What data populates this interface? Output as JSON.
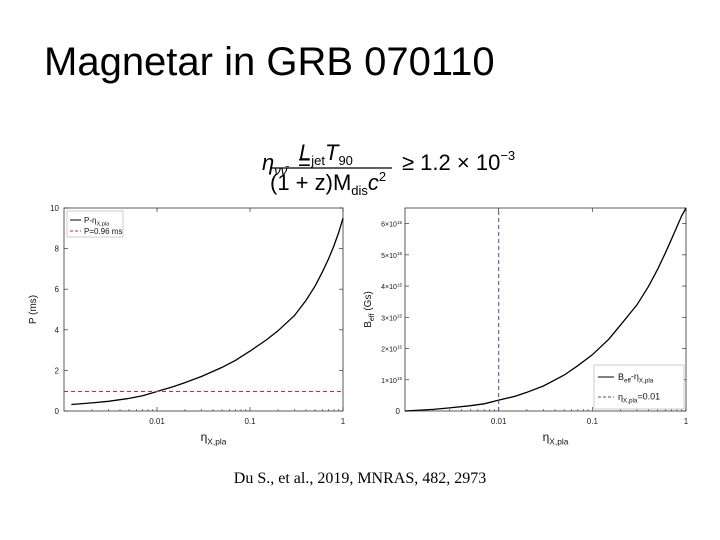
{
  "slide": {
    "title": "Magnetar in GRB 070110",
    "citation": "Du S., et al., 2019, MNRAS, 482, 2973"
  },
  "equation": {
    "lhs": "η",
    "lhs_sub": "νν̄",
    "num_main": "L",
    "num_sub": "jet",
    "num_main2": "T",
    "num_sub2": "90",
    "den_pre": "(1 + z)M",
    "den_sub": "dis",
    "den_post": "c",
    "den_sup": "2",
    "rhs": "≥ 1.2 × 10",
    "rhs_sup": "−3"
  },
  "chart_data": [
    {
      "type": "line",
      "x_scale": "log",
      "xlim": [
        0.001,
        1
      ],
      "ylim": [
        0,
        10
      ],
      "xlabel": "η",
      "xlabel_sub": "X,pla",
      "ylabel": "P (ms)",
      "x_ticks": [
        {
          "v": 0.01,
          "label": "0.01"
        },
        {
          "v": 0.1,
          "label": "0.1"
        },
        {
          "v": 1,
          "label": "1"
        }
      ],
      "y_ticks": [
        {
          "v": 0,
          "label": "0"
        },
        {
          "v": 2,
          "label": "2"
        },
        {
          "v": 4,
          "label": "4"
        },
        {
          "v": 6,
          "label": "6"
        },
        {
          "v": 8,
          "label": "8"
        },
        {
          "v": 10,
          "label": "10"
        }
      ],
      "legend_position": "top-left",
      "series": [
        {
          "name": "P-η",
          "name_sub": "X,pla",
          "color": "#000000",
          "style": "solid",
          "x": [
            0.0012,
            0.002,
            0.003,
            0.005,
            0.007,
            0.01,
            0.015,
            0.02,
            0.03,
            0.05,
            0.07,
            0.1,
            0.15,
            0.2,
            0.3,
            0.4,
            0.5,
            0.6,
            0.7,
            0.8,
            0.9,
            1.0
          ],
          "y": [
            0.32,
            0.4,
            0.48,
            0.62,
            0.75,
            0.96,
            1.2,
            1.4,
            1.7,
            2.15,
            2.5,
            2.95,
            3.5,
            3.95,
            4.7,
            5.45,
            6.15,
            6.85,
            7.5,
            8.15,
            8.8,
            9.5
          ]
        },
        {
          "name": "P=0.96 ms",
          "color": "#d62728",
          "style": "dashed",
          "x": [
            0.001,
            1
          ],
          "y": [
            0.96,
            0.96
          ]
        }
      ]
    },
    {
      "type": "line",
      "x_scale": "log",
      "xlim": [
        0.001,
        1
      ],
      "ylim": [
        0,
        6500000000000000.0
      ],
      "xlabel": "η",
      "xlabel_sub": "X,pla",
      "ylabel": "B",
      "ylabel_sub": "eff",
      "ylabel_post": " (Gs)",
      "x_ticks": [
        {
          "v": 0.01,
          "label": "0.01"
        },
        {
          "v": 0.1,
          "label": "0.1"
        },
        {
          "v": 1,
          "label": "1"
        }
      ],
      "y_ticks": [
        {
          "v": 0,
          "label": "0"
        },
        {
          "v": 1000000000000000.0,
          "label": "1×10",
          "sup": "15"
        },
        {
          "v": 2000000000000000.0,
          "label": "2×10",
          "sup": "15"
        },
        {
          "v": 3000000000000000.0,
          "label": "3×10",
          "sup": "15"
        },
        {
          "v": 4000000000000000.0,
          "label": "4×10",
          "sup": "15"
        },
        {
          "v": 5000000000000000.0,
          "label": "5×10",
          "sup": "15"
        },
        {
          "v": 6000000000000000.0,
          "label": "6×10",
          "sup": "15"
        }
      ],
      "legend_position": "bottom-right",
      "series": [
        {
          "name": "B",
          "name_sub": "eff",
          "name_post": "-η",
          "name_sub2": "X,pla",
          "color": "#000000",
          "style": "solid",
          "x": [
            0.001,
            0.002,
            0.003,
            0.005,
            0.007,
            0.01,
            0.015,
            0.02,
            0.03,
            0.05,
            0.07,
            0.1,
            0.15,
            0.2,
            0.3,
            0.4,
            0.5,
            0.6,
            0.7,
            0.8,
            0.9,
            1.0
          ],
          "y": [
            0.0,
            50000000000000.0,
            100000000000000.0,
            170000000000000.0,
            230000000000000.0,
            350000000000000.0,
            470000000000000.0,
            600000000000000.0,
            800000000000000.0,
            1150000000000000.0,
            1450000000000000.0,
            1800000000000000.0,
            2300000000000000.0,
            2750000000000000.0,
            3400000000000000.0,
            4000000000000000.0,
            4550000000000000.0,
            5050000000000000.0,
            5500000000000000.0,
            5900000000000000.0,
            6250000000000000.0,
            6500000000000000.0
          ]
        },
        {
          "name": "η",
          "name_sub": "X,pla",
          "name_post": "=0.01",
          "color": "#3a4db0",
          "style": "dashed",
          "orientation": "vertical",
          "x": [
            0.01,
            0.01
          ],
          "y": [
            0,
            6500000000000000.0
          ]
        }
      ]
    }
  ]
}
